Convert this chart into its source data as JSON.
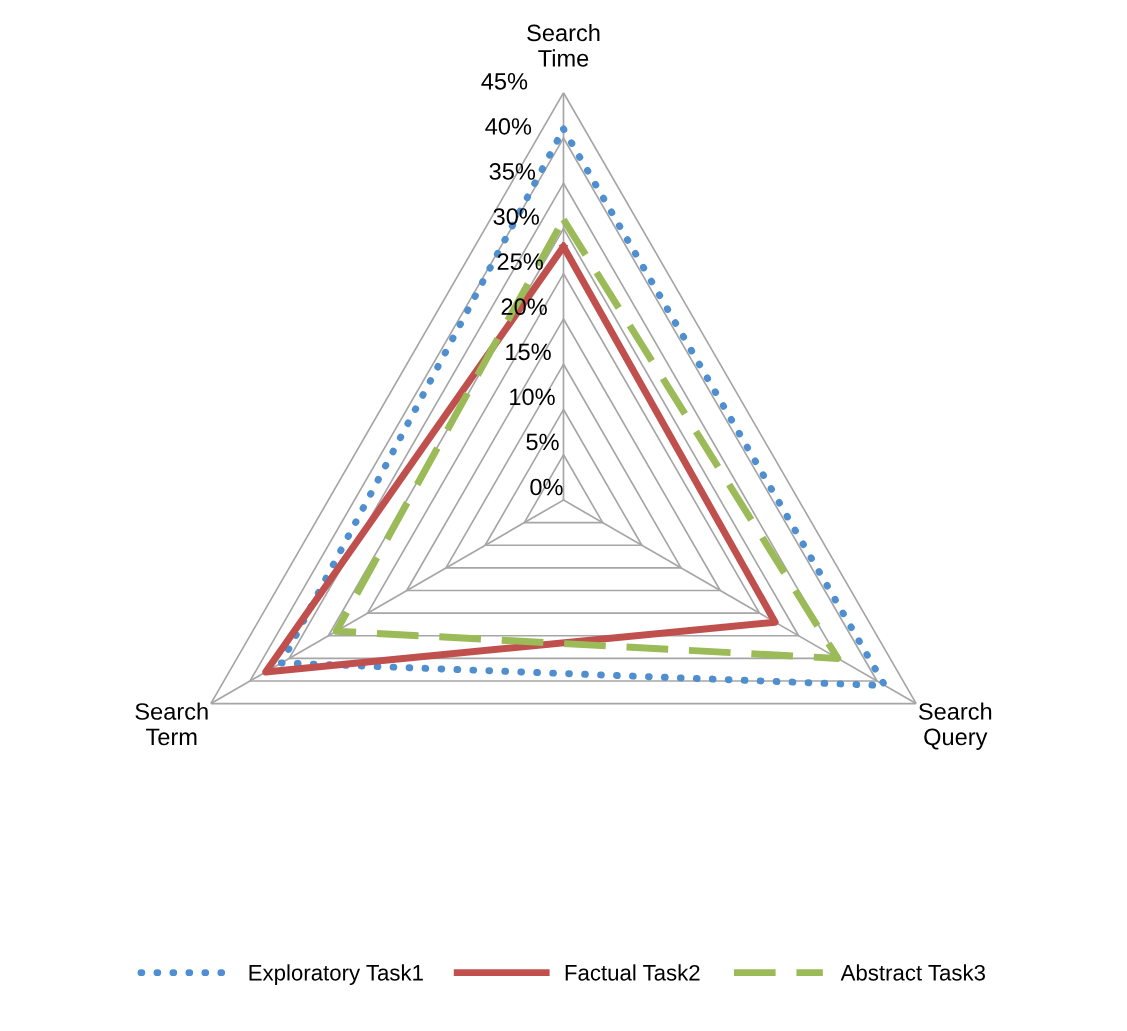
{
  "chart_data": {
    "type": "radar",
    "categories": [
      "Search\nTime",
      "Search\nQuery",
      "Search\nTerm"
    ],
    "series": [
      {
        "name": "Exploratory Task1",
        "color": "#4f8fcf",
        "line_style": "dotted",
        "values": [
          41,
          41,
          36
        ]
      },
      {
        "name": "Factual Task2",
        "color": "#c0504d",
        "line_style": "solid",
        "values": [
          28,
          27,
          38
        ]
      },
      {
        "name": "Abstract Task3",
        "color": "#9bbb59",
        "line_style": "dashed",
        "values": [
          31,
          35,
          29
        ]
      }
    ],
    "ylim": [
      0,
      45
    ],
    "yticks": [
      {
        "value": 0,
        "label": "0%"
      },
      {
        "value": 5,
        "label": "5%"
      },
      {
        "value": 10,
        "label": "10%"
      },
      {
        "value": 15,
        "label": "15%"
      },
      {
        "value": 20,
        "label": "20%"
      },
      {
        "value": 25,
        "label": "25%"
      },
      {
        "value": 30,
        "label": "30%"
      },
      {
        "value": 35,
        "label": "35%"
      },
      {
        "value": 40,
        "label": "40%"
      },
      {
        "value": 45,
        "label": "45%"
      }
    ],
    "grid": true,
    "legend": "bottom"
  }
}
